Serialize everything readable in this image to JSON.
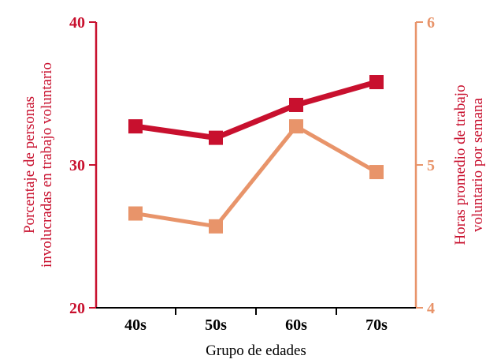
{
  "chart_data": {
    "type": "line",
    "categories": [
      "40s",
      "50s",
      "60s",
      "70s"
    ],
    "xlabel": "Grupo de edades",
    "ylabel_left": [
      "Porcentaje de personas",
      "involucradas en trabajo voluntario"
    ],
    "ylabel_right": [
      "Horas promedio de trabajo",
      "voluntario por semana"
    ],
    "y_left": {
      "lim": [
        20,
        40
      ],
      "ticks": [
        "20",
        "30",
        "40"
      ]
    },
    "y_right": {
      "lim": [
        4,
        6
      ],
      "ticks": [
        "4",
        "5",
        "6"
      ]
    },
    "series": [
      {
        "axis": "left",
        "values": [
          32.7,
          31.9,
          34.2,
          35.8
        ],
        "color": "#c8102e"
      },
      {
        "axis": "right",
        "values": [
          4.66,
          4.57,
          5.27,
          4.95
        ],
        "color": "#e8946a"
      }
    ],
    "colors": {
      "left_axis": "#c8102e",
      "right_axis": "#e8946a",
      "right_label": "#c8102e",
      "bottom_axis": "#000000"
    },
    "grid": false
  }
}
